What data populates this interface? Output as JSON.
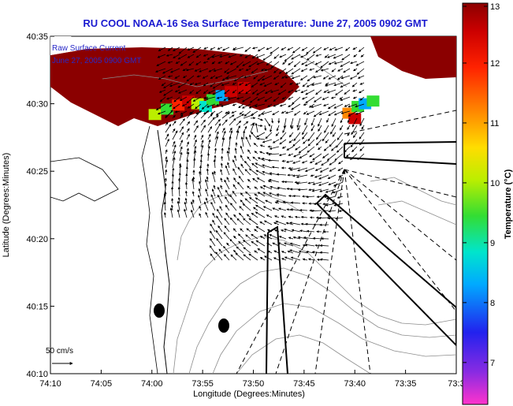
{
  "chart_data": {
    "type": "heatmap",
    "title": "RU COOL  NOAA-16  Sea Surface Temperature:  June 27, 2005 0902 GMT",
    "xlabel": "Longitude (Degrees:Minutes)",
    "ylabel": "Latitude (Degrees:Minutes)",
    "x_ticks": [
      "74:10",
      "74:05",
      "74:00",
      "73:55",
      "73:50",
      "73:45",
      "73:40",
      "73:35",
      "73:3"
    ],
    "y_ticks": [
      "40:35",
      "40:30",
      "40:25",
      "40:20",
      "40:15",
      "40:10"
    ],
    "xlim_minutes": [
      -10,
      30
    ],
    "ylim_minutes": [
      10,
      35
    ],
    "legend": {
      "line1": "Raw Surface Current",
      "line2": "June 27, 2005 0900 GMT"
    },
    "scale_label": "50 cm/s",
    "colorbar": {
      "label": "Temperature (°C)",
      "min": 6.3,
      "max": 13,
      "ticks": [
        "13",
        "12",
        "11",
        "10",
        "9",
        "8",
        "7"
      ],
      "tick_values": [
        13,
        12,
        11,
        10,
        9,
        8,
        7
      ],
      "stops": [
        "#ff33cc",
        "#8a2be2",
        "#2222ee",
        "#00aaff",
        "#00e5cc",
        "#33dd33",
        "#bbee00",
        "#ffdd00",
        "#ff8800",
        "#ff2200",
        "#cc0000",
        "#8b0000"
      ]
    },
    "sst_patches": [
      {
        "lon": 0.3,
        "lat": 29.2,
        "temp": 10.2
      },
      {
        "lon": 1.5,
        "lat": 29.6,
        "temp": 9.5
      },
      {
        "lon": 2.6,
        "lat": 29.9,
        "temp": 11.5
      },
      {
        "lon": 3.6,
        "lat": 30.2,
        "temp": 12.1
      },
      {
        "lon": 4.5,
        "lat": 30.0,
        "temp": 10.0
      },
      {
        "lon": 5.3,
        "lat": 29.8,
        "temp": 8.6
      },
      {
        "lon": 6.0,
        "lat": 30.3,
        "temp": 9.2
      },
      {
        "lon": 6.9,
        "lat": 30.6,
        "temp": 8.3
      },
      {
        "lon": 7.8,
        "lat": 30.9,
        "temp": 12.3
      },
      {
        "lon": 9.1,
        "lat": 31.2,
        "temp": 12.6
      },
      {
        "lon": 19.4,
        "lat": 29.3,
        "temp": 11.4
      },
      {
        "lon": 20.3,
        "lat": 29.8,
        "temp": 9.6
      },
      {
        "lon": 21.0,
        "lat": 30.0,
        "temp": 8.2
      },
      {
        "lon": 21.8,
        "lat": 30.2,
        "temp": 9.1
      },
      {
        "lon": 20.0,
        "lat": 28.9,
        "temp": 12.2
      }
    ]
  }
}
